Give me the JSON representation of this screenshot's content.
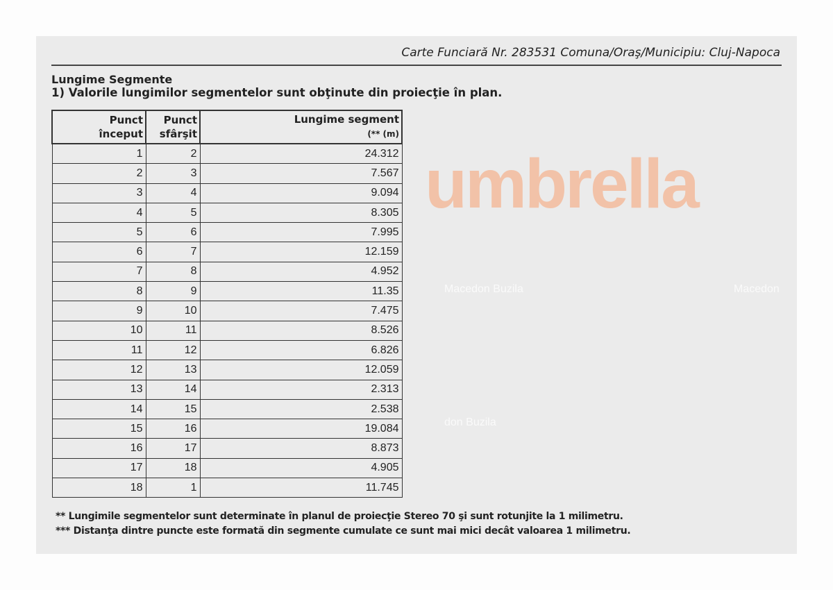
{
  "header": "Carte Funciară Nr. 283531 Comuna/Oraş/Municipiu: Cluj-Napoca",
  "section_title": "Lungime Segmente",
  "note_1": "1) Valorile lungimilor segmentelor sunt obţinute din proiecţie în plan.",
  "table": {
    "headers": [
      {
        "line1": "Punct",
        "line2": "început"
      },
      {
        "line1": "Punct",
        "line2": "sfârşit"
      },
      {
        "line1": "Lungime segment",
        "line2": "(** (m)"
      }
    ],
    "rows": [
      [
        "1",
        "2",
        "24.312"
      ],
      [
        "2",
        "3",
        "7.567"
      ],
      [
        "3",
        "4",
        "9.094"
      ],
      [
        "4",
        "5",
        "8.305"
      ],
      [
        "5",
        "6",
        "7.995"
      ],
      [
        "6",
        "7",
        "12.159"
      ],
      [
        "7",
        "8",
        "4.952"
      ],
      [
        "8",
        "9",
        "11.35"
      ],
      [
        "9",
        "10",
        "7.475"
      ],
      [
        "10",
        "11",
        "8.526"
      ],
      [
        "11",
        "12",
        "6.826"
      ],
      [
        "12",
        "13",
        "12.059"
      ],
      [
        "13",
        "14",
        "2.313"
      ],
      [
        "14",
        "15",
        "2.538"
      ],
      [
        "15",
        "16",
        "19.084"
      ],
      [
        "16",
        "17",
        "8.873"
      ],
      [
        "17",
        "18",
        "4.905"
      ],
      [
        "18",
        "1",
        "11.745"
      ]
    ]
  },
  "footnotes": [
    "** Lungimile segmentelor sunt determinate în planul de proiecţie Stereo 70 şi sunt rotunjite la 1 milimetru.",
    "*** Distanţa dintre puncte este formată din segmente cumulate ce sunt mai mici decât valoarea 1 milimetru."
  ],
  "watermarks": [
    "don Buzila",
    "Macedon Buzila",
    "Macedon"
  ],
  "logo_text": "umbrella"
}
